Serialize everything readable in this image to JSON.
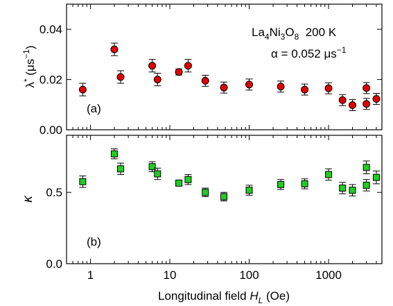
{
  "chart_data": [
    {
      "type": "scatter",
      "panel_label": "(a)",
      "ylabel": "λ* (μs⁻¹)",
      "ylabel_parts": {
        "main": "λ",
        "sup": "*",
        "unit": " (μs",
        "unit_sup": "−1",
        "close": ")"
      },
      "ylim": [
        0.0,
        0.05
      ],
      "yticks": [
        0.0,
        0.02,
        0.04
      ],
      "ytick_labels": [
        "0.00",
        "0.02",
        "0.04"
      ],
      "x_scale": "log",
      "xlim": [
        0.5,
        4700
      ],
      "annotation": {
        "line1": {
          "base": "La",
          "s1": "4",
          "b2": "Ni",
          "s2": "3",
          "b3": "O",
          "s3": "8",
          "rest": "  200 K"
        },
        "line2": {
          "text": "α = 0.052 μs",
          "sup": "−1"
        }
      },
      "marker_color": "#e00000",
      "marker_shape": "circle",
      "points": [
        {
          "x": 0.8,
          "y": 0.016,
          "err": 0.0025
        },
        {
          "x": 2.0,
          "y": 0.032,
          "err": 0.0025
        },
        {
          "x": 2.4,
          "y": 0.021,
          "err": 0.0025
        },
        {
          "x": 6.0,
          "y": 0.0255,
          "err": 0.0025
        },
        {
          "x": 7.0,
          "y": 0.02,
          "err": 0.0025
        },
        {
          "x": 13.0,
          "y": 0.023,
          "err": 0.0012
        },
        {
          "x": 17.0,
          "y": 0.0255,
          "err": 0.0025
        },
        {
          "x": 28.0,
          "y": 0.0195,
          "err": 0.0022
        },
        {
          "x": 48.0,
          "y": 0.0168,
          "err": 0.0022
        },
        {
          "x": 100.0,
          "y": 0.018,
          "err": 0.0022
        },
        {
          "x": 250.0,
          "y": 0.0172,
          "err": 0.0022
        },
        {
          "x": 500.0,
          "y": 0.016,
          "err": 0.0022
        },
        {
          "x": 1000.0,
          "y": 0.0165,
          "err": 0.0022
        },
        {
          "x": 1500.0,
          "y": 0.0118,
          "err": 0.0022
        },
        {
          "x": 2000.0,
          "y": 0.0098,
          "err": 0.0022
        },
        {
          "x": 3000.0,
          "y": 0.0103,
          "err": 0.0022
        },
        {
          "x": 3000.0,
          "y": 0.0166,
          "err": 0.0022
        },
        {
          "x": 4000.0,
          "y": 0.0123,
          "err": 0.0022
        }
      ]
    },
    {
      "type": "scatter",
      "panel_label": "(b)",
      "ylabel": "κ",
      "ylim": [
        0.0,
        0.9
      ],
      "yticks": [
        0.0,
        0.5
      ],
      "ytick_labels": [
        "0.0",
        "0.5"
      ],
      "x_scale": "log",
      "xlim": [
        0.5,
        4700
      ],
      "xticks": [
        1,
        10,
        100,
        1000
      ],
      "xtick_labels": [
        "1",
        "10",
        "100",
        "1000"
      ],
      "xlabel_parts": {
        "pre": "Longitudinal field ",
        "var": "H",
        "sub": "L",
        "post": " (Oe)"
      },
      "marker_color": "#22cc22",
      "marker_shape": "square",
      "points": [
        {
          "x": 0.8,
          "y": 0.575,
          "err": 0.04
        },
        {
          "x": 2.0,
          "y": 0.77,
          "err": 0.035
        },
        {
          "x": 2.4,
          "y": 0.665,
          "err": 0.04
        },
        {
          "x": 6.0,
          "y": 0.68,
          "err": 0.035
        },
        {
          "x": 7.0,
          "y": 0.63,
          "err": 0.04
        },
        {
          "x": 13.0,
          "y": 0.565,
          "err": 0.015
        },
        {
          "x": 17.0,
          "y": 0.59,
          "err": 0.035
        },
        {
          "x": 28.0,
          "y": 0.5,
          "err": 0.03
        },
        {
          "x": 48.0,
          "y": 0.47,
          "err": 0.03
        },
        {
          "x": 100.0,
          "y": 0.515,
          "err": 0.035
        },
        {
          "x": 250.0,
          "y": 0.555,
          "err": 0.035
        },
        {
          "x": 500.0,
          "y": 0.56,
          "err": 0.035
        },
        {
          "x": 1000.0,
          "y": 0.625,
          "err": 0.04
        },
        {
          "x": 1500.0,
          "y": 0.53,
          "err": 0.04
        },
        {
          "x": 2000.0,
          "y": 0.515,
          "err": 0.04
        },
        {
          "x": 3000.0,
          "y": 0.55,
          "err": 0.04
        },
        {
          "x": 3000.0,
          "y": 0.675,
          "err": 0.045
        },
        {
          "x": 4000.0,
          "y": 0.605,
          "err": 0.045
        }
      ]
    }
  ]
}
